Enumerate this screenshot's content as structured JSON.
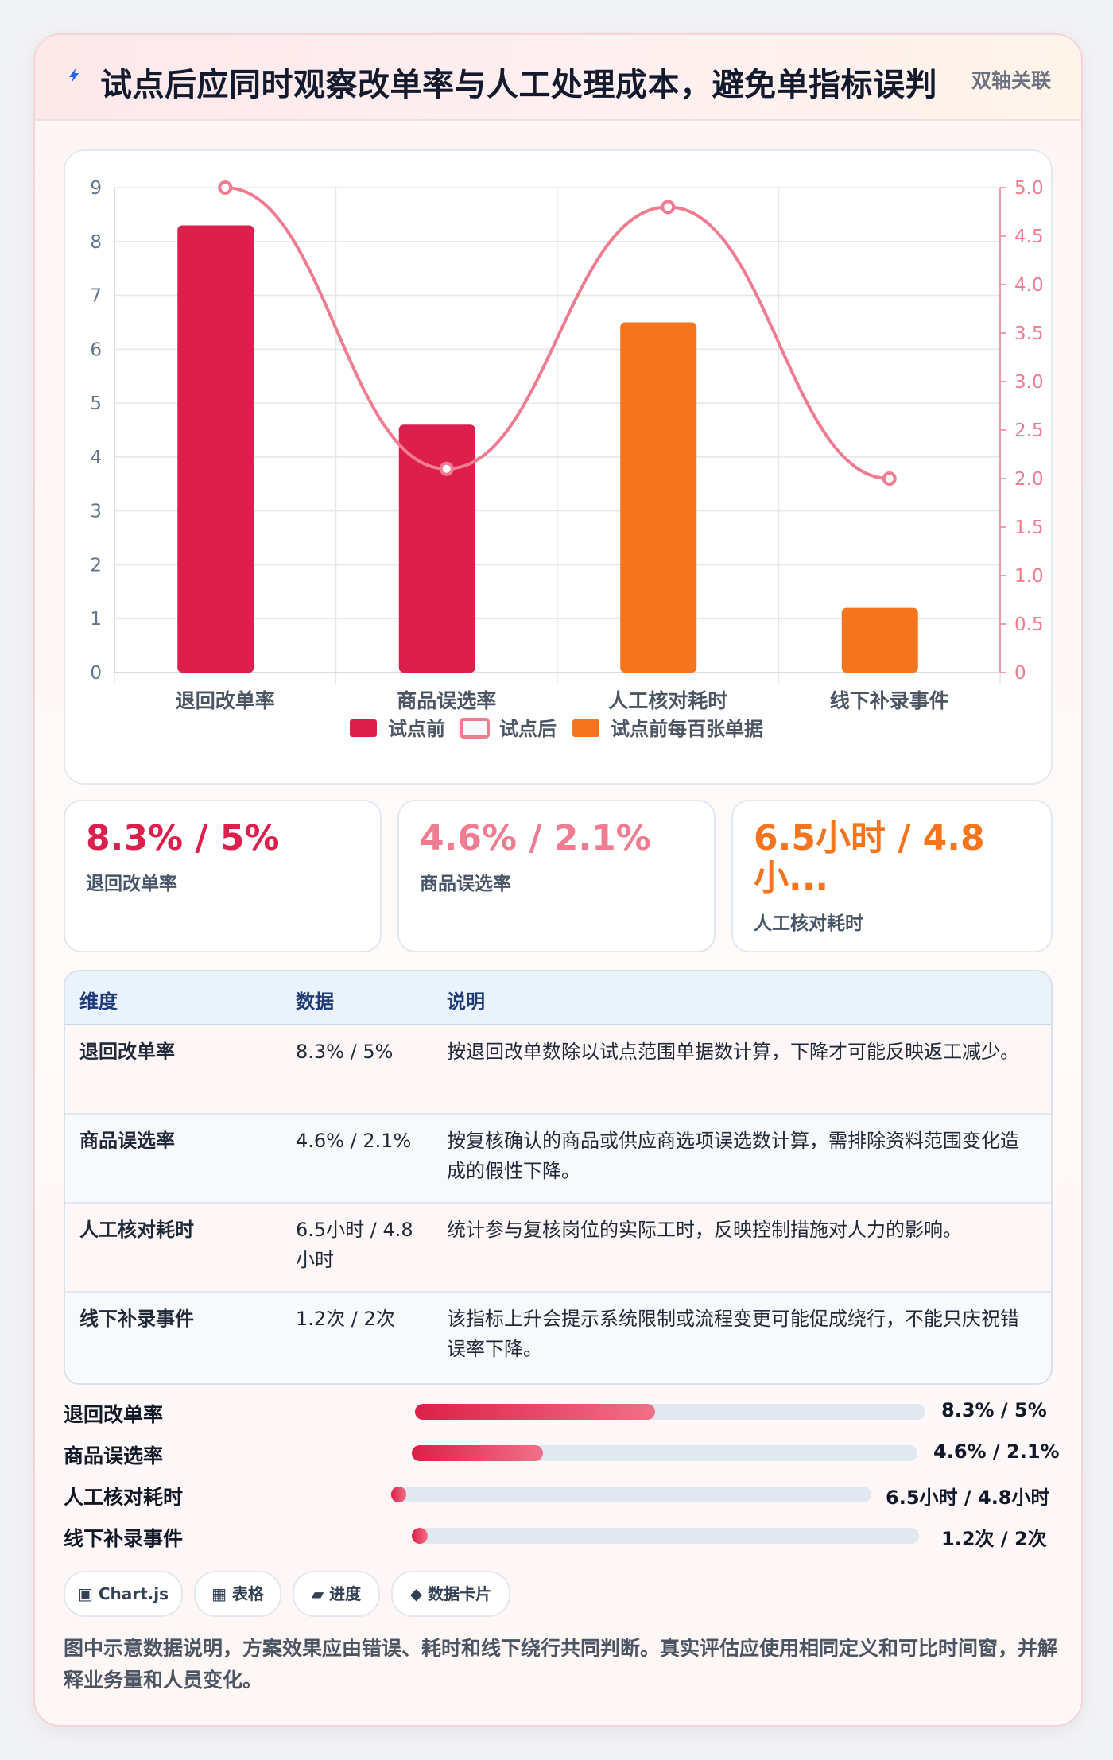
{
  "header": {
    "title": "试点后应同时观察改单率与人工处理成本，避免单指标误判",
    "badge": "双轴关联"
  },
  "colors": {
    "red": "#dc1f4c",
    "pink": "#ef7c90",
    "orange": "#f5741e"
  },
  "chart_data": {
    "type": "bar",
    "categories": [
      "退回改单率",
      "商品误选率",
      "人工核对耗时",
      "线下补录事件"
    ],
    "y_left": {
      "ticks": [
        "0",
        "1",
        "2",
        "3",
        "4",
        "5",
        "6",
        "7",
        "8",
        "9"
      ],
      "range": [
        0,
        9
      ]
    },
    "y_right": {
      "ticks": [
        "0",
        "0.5",
        "1.0",
        "1.5",
        "2.0",
        "2.5",
        "3.0",
        "3.5",
        "4.0",
        "4.5",
        "5.0"
      ],
      "range": [
        0,
        5
      ]
    },
    "series": [
      {
        "name": "试点前",
        "type": "bar",
        "axis": "left",
        "color": "#dc1f4c",
        "values": [
          8.3,
          4.6,
          null,
          null
        ]
      },
      {
        "name": "试点后",
        "type": "line",
        "axis": "right",
        "color": "#ef7c90",
        "values": [
          5,
          2.1,
          4.8,
          2
        ]
      },
      {
        "name": "试点前每百张单据",
        "type": "bar",
        "axis": "left",
        "color": "#f5741e",
        "values": [
          null,
          null,
          6.5,
          1.2
        ]
      }
    ],
    "grid": true,
    "legend": "bottom"
  },
  "stats": [
    {
      "value": "8.3% / 5%",
      "label": "退回改单率",
      "color": "#dc1f4c"
    },
    {
      "value": "4.6% / 2.1%",
      "label": "商品误选率",
      "color": "#ef7c90"
    },
    {
      "value": "6.5小时 / 4.8小...",
      "label": "人工核对耗时",
      "color": "#f5741e"
    }
  ],
  "table": {
    "headers": [
      "维度",
      "数据",
      "说明"
    ],
    "rows": [
      {
        "dim": "退回改单率",
        "data": "8.3% / 5%",
        "desc": "按退回改单数除以试点范围单据数计算，下降才可能反映返工减少。"
      },
      {
        "dim": "商品误选率",
        "data": "4.6% / 2.1%",
        "desc": "按复核确认的商品或供应商选项误选数计算，需排除资料范围变化造成的假性下降。"
      },
      {
        "dim": "人工核对耗时",
        "data": "6.5小时 / 4.8小时",
        "desc": "统计参与复核岗位的实际工时，反映控制措施对人力的影响。"
      },
      {
        "dim": "线下补录事件",
        "data": "1.2次 / 2次",
        "desc": "该指标上升会提示系统限制或流程变更可能促成绕行，不能只庆祝错误率下降。"
      }
    ]
  },
  "progress": [
    {
      "label": "退回改单率",
      "value": "8.3% / 5%",
      "fraction": 0.47
    },
    {
      "label": "商品误选率",
      "value": "4.6% / 2.1%",
      "fraction": 0.26
    },
    {
      "label": "人工核对耗时",
      "value": "6.5小时 / 4.8小时",
      "fraction": 0.02
    },
    {
      "label": "线下补录事件",
      "value": "1.2次 / 2次",
      "fraction": 0.02
    }
  ],
  "chips": [
    {
      "icon": "▣",
      "label": "Chart.js"
    },
    {
      "icon": "▦",
      "label": "表格"
    },
    {
      "icon": "▰",
      "label": "进度"
    },
    {
      "icon": "◆",
      "label": "数据卡片"
    }
  ],
  "note": "图中示意数据说明，方案效果应由错误、耗时和线下绕行共同判断。真实评估应使用相同定义和可比时间窗，并解释业务量和人员变化。"
}
